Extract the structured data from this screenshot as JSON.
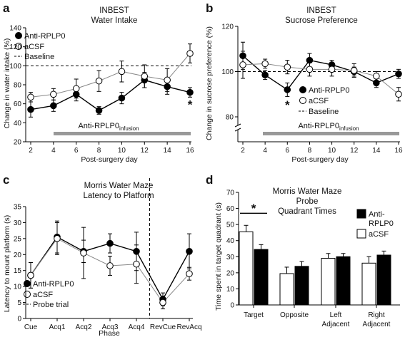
{
  "chart_data": [
    {
      "panel": "a",
      "type": "line",
      "title": "INBEST",
      "subtitle": "Water Intake",
      "xlabel": "Post-surgery day",
      "ylabel": "Change in water intake (%)",
      "x": [
        2,
        4,
        6,
        8,
        10,
        12,
        14,
        16
      ],
      "xlim": [
        2,
        16
      ],
      "ylim": [
        20,
        140
      ],
      "yticks": [
        20,
        40,
        60,
        80,
        100,
        120,
        140
      ],
      "baseline": 100,
      "series": [
        {
          "name": "Anti-RPLP0",
          "marker": "filled",
          "values": [
            54,
            58,
            70,
            53,
            66,
            85,
            78,
            72
          ],
          "errors": [
            8,
            6,
            7,
            4,
            6,
            8,
            8,
            5
          ]
        },
        {
          "name": "aCSF",
          "marker": "open",
          "values": [
            67,
            70,
            76,
            84,
            94,
            89,
            85,
            113
          ],
          "errors": [
            5,
            6,
            10,
            11,
            11,
            12,
            12,
            10
          ]
        }
      ],
      "legend": [
        "Anti-RPLP0",
        "aCSF",
        "Baseline"
      ],
      "infusion_bar": {
        "label": "Anti-RPLP0",
        "subscript": "infusion",
        "x": [
          4,
          16
        ]
      },
      "annotations": [
        {
          "text": "*",
          "x": 16
        }
      ]
    },
    {
      "panel": "b",
      "type": "line",
      "title": "INBEST",
      "subtitle": "Sucrose Preference",
      "xlabel": "Post-surgery day",
      "ylabel": "Change in sucrose preference (%)",
      "x": [
        2,
        4,
        6,
        8,
        10,
        12,
        14,
        16
      ],
      "xlim": [
        2,
        16
      ],
      "ylim": [
        80,
        120
      ],
      "yticks": [
        80,
        100,
        120
      ],
      "axis_break": true,
      "baseline": 100,
      "series": [
        {
          "name": "Anti-RPLP0",
          "marker": "filled",
          "values": [
            107,
            98.5,
            92,
            105,
            103,
            100,
            95,
            99
          ],
          "errors": [
            6,
            2,
            3,
            3,
            2,
            2,
            2,
            2
          ]
        },
        {
          "name": "aCSF",
          "marker": "open",
          "values": [
            103,
            103.5,
            102,
            101,
            101,
            100.5,
            98,
            90
          ],
          "errors": [
            6,
            2,
            3,
            3,
            3,
            3,
            2,
            3
          ]
        }
      ],
      "legend": [
        "Anti-RPLP0",
        "aCSF",
        "Baseline"
      ],
      "infusion_bar": {
        "label": "Anti-RPLP0",
        "subscript": "infusion",
        "x": [
          4,
          16
        ]
      },
      "annotations": [
        {
          "text": "*",
          "x": 6
        }
      ]
    },
    {
      "panel": "c",
      "type": "line",
      "title": "Morris Water Maze",
      "subtitle": "Latency to Platform",
      "xlabel": "Phase",
      "ylabel": "Latency to mount platform (s)",
      "categories": [
        "Cue",
        "Acq1",
        "Acq2",
        "Acq3",
        "Acq4",
        "RevCue",
        "RevAcq"
      ],
      "ylim": [
        0,
        35
      ],
      "yticks": [
        0,
        5,
        10,
        15,
        20,
        25,
        30,
        35
      ],
      "probe_trial_between": [
        "Acq4",
        "RevCue"
      ],
      "series": [
        {
          "name": "Anti-RPLP0",
          "marker": "filled",
          "values": [
            13.5,
            25.5,
            21,
            23.5,
            21,
            6,
            21
          ],
          "errors": [
            4,
            5,
            3.5,
            3,
            6,
            2,
            5.5
          ]
        },
        {
          "name": "aCSF",
          "marker": "open",
          "values": [
            13.5,
            25,
            20.5,
            16.5,
            17,
            5,
            14
          ],
          "errors": [
            4,
            5,
            8,
            3,
            6,
            2,
            2
          ]
        }
      ],
      "legend": [
        "Anti-RPLP0",
        "aCSF",
        "Probe trial"
      ]
    },
    {
      "panel": "d",
      "type": "bar",
      "title": "Morris Water Maze",
      "subtitle": "Probe",
      "subtitle2": "Quadrant Times",
      "xlabel": "",
      "ylabel": "Time spent in target quadrant (s)",
      "categories": [
        [
          "Target"
        ],
        [
          "Opposite"
        ],
        [
          "Left",
          "Adjacent"
        ],
        [
          "Right",
          "Adjacent"
        ]
      ],
      "ylim": [
        0,
        70
      ],
      "yticks": [
        0,
        10,
        20,
        30,
        40,
        50,
        60,
        70
      ],
      "series": [
        {
          "name": "aCSF",
          "color": "#ffffff",
          "values": [
            45.5,
            19.5,
            29,
            26
          ],
          "errors": [
            4,
            4,
            3,
            4
          ]
        },
        {
          "name": "Anti-RPLP0",
          "color": "#000000",
          "values": [
            34.5,
            24,
            30,
            31
          ],
          "errors": [
            3,
            3,
            2,
            2.5
          ]
        }
      ],
      "legend": [
        [
          "Anti-",
          "RPLP0"
        ],
        [
          "aCSF"
        ]
      ],
      "annotations": [
        {
          "text": "*",
          "category": "Target"
        }
      ]
    }
  ],
  "panel_letters": [
    "a",
    "b",
    "c",
    "d"
  ]
}
